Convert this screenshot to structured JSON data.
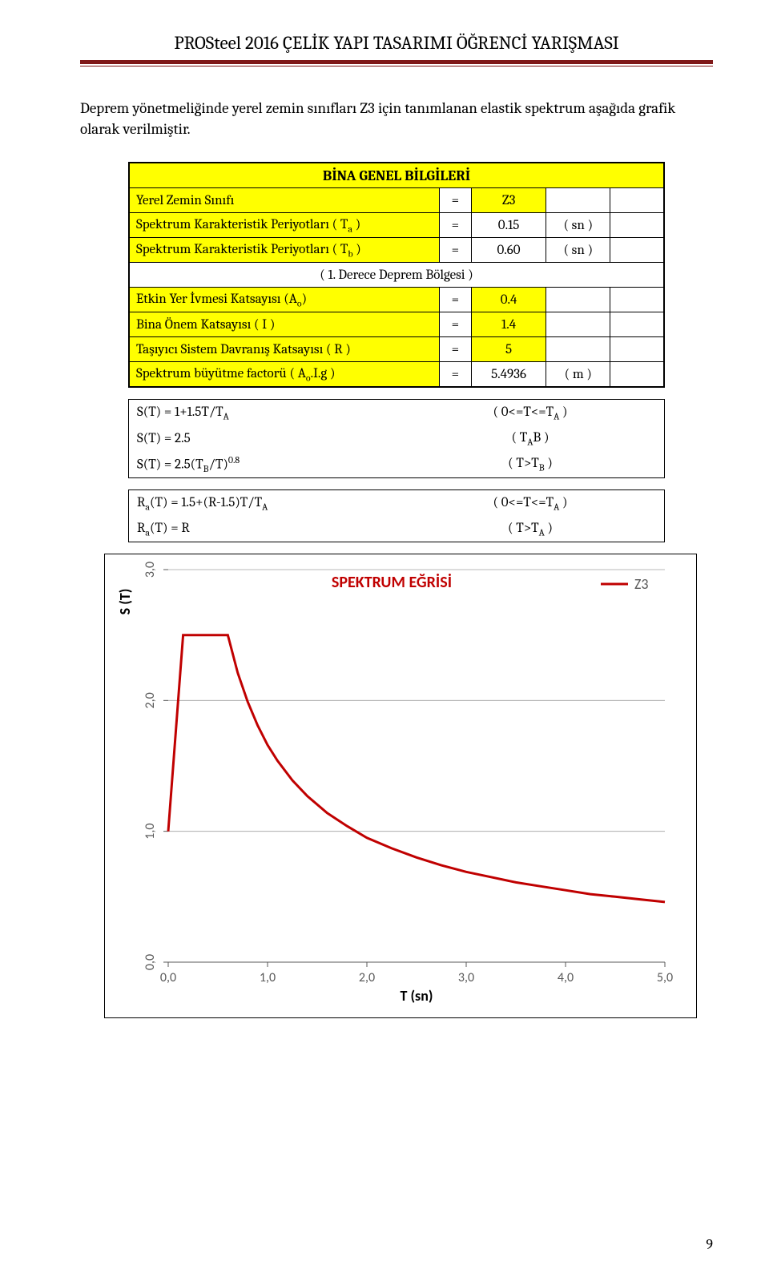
{
  "header": {
    "title": "PROSteel 2016 ÇELİK YAPI TASARIMI ÖĞRENCİ YARIŞMASI"
  },
  "intro": "Deprem yönetmeliğinde yerel zemin sınıfları Z3 için tanımlanan elastik spektrum aşağıda grafik olarak verilmiştir.",
  "table": {
    "title": "BİNA GENEL BİLGİLERİ",
    "rows": [
      {
        "label": "Yerel Zemin Sınıfı",
        "eq": "=",
        "val": "Z3",
        "unit": "",
        "yellow_cols": [
          "label",
          "val"
        ]
      },
      {
        "label_html": "Spektrum Karakteristik Periyotları ( T<sub>a</sub> )",
        "eq": "=",
        "val": "0.15",
        "unit": "( sn )",
        "yellow_cols": [
          "label"
        ]
      },
      {
        "label_html": "Spektrum Karakteristik Periyotları ( T<sub>b</sub> )",
        "eq": "=",
        "val": "0.60",
        "unit": "( sn )",
        "yellow_cols": [
          "label"
        ]
      },
      {
        "label": "( 1. Derece Deprem Bölgesi )",
        "center": true
      },
      {
        "label_html": "Etkin Yer İvmesi Katsayısı (A<sub>o</sub>)",
        "eq": "=",
        "val": "0.4",
        "unit": "",
        "yellow_cols": [
          "label",
          "val"
        ]
      },
      {
        "label": "Bina Önem Katsayısı ( I )",
        "eq": "=",
        "val": "1.4",
        "unit": "",
        "yellow_cols": [
          "label",
          "val"
        ]
      },
      {
        "label": "Taşıyıcı Sistem Davranış Katsayısı ( R )",
        "eq": "=",
        "val": "5",
        "unit": "",
        "yellow_cols": [
          "label",
          "val"
        ]
      },
      {
        "label_html": "Spektrum büyütme factorü ( A<sub>o</sub>.I.g )",
        "eq": "=",
        "val": "5.4936",
        "unit": "( m )",
        "yellow_cols": [
          "label"
        ]
      }
    ]
  },
  "formulas1": [
    {
      "left_html": "S(T) = 1+1.5T/T<sub>A</sub>",
      "right_html": "( 0<=T<=T<sub>A</sub> )"
    },
    {
      "left_html": "S(T) = 2.5",
      "right_html": "( T<sub>A</sub><T<=T<sub>B</sub> )"
    },
    {
      "left_html": "S(T) = 2.5(T<sub>B</sub>/T)<sup>0.8</sup>",
      "right_html": "(        T>T<sub>B</sub> )"
    }
  ],
  "formulas2": [
    {
      "left_html": "R<sub>a</sub>(T) = 1.5+(R-1.5)T/T<sub>A</sub>",
      "right_html": "( 0<=T<=T<sub>A</sub> )"
    },
    {
      "left_html": "R<sub>a</sub>(T) = R",
      "right_html": "(        T>T<sub>A</sub> )"
    }
  ],
  "chart": {
    "title": "SPEKTRUM EĞRİSİ",
    "title_color": "#c00000",
    "legend_label": "Z3",
    "legend_color": "#c00000",
    "y_label": "S (T)",
    "x_label": "T (sn)",
    "y_ticks": [
      "0,0",
      "1,0",
      "2,0",
      "3,0"
    ],
    "x_ticks": [
      "0,0",
      "1,0",
      "2,0",
      "3,0",
      "4,0",
      "5,0"
    ],
    "ylim": [
      0,
      3
    ],
    "xlim": [
      0,
      5
    ],
    "grid_color": "#a0a0a0",
    "tick_color": "#595959",
    "border_color": "#000000",
    "background_color": "#ffffff",
    "line_color": "#c00000",
    "line_width": 3,
    "font_size_title": 20,
    "font_size_ticks": 16,
    "curve_points": [
      [
        0.0,
        1.0
      ],
      [
        0.15,
        2.5
      ],
      [
        0.6,
        2.5
      ],
      [
        0.7,
        2.21
      ],
      [
        0.8,
        1.99
      ],
      [
        0.9,
        1.81
      ],
      [
        1.0,
        1.66
      ],
      [
        1.1,
        1.54
      ],
      [
        1.25,
        1.39
      ],
      [
        1.4,
        1.27
      ],
      [
        1.6,
        1.14
      ],
      [
        1.8,
        1.04
      ],
      [
        2.0,
        0.95
      ],
      [
        2.25,
        0.87
      ],
      [
        2.5,
        0.8
      ],
      [
        2.75,
        0.74
      ],
      [
        3.0,
        0.69
      ],
      [
        3.25,
        0.65
      ],
      [
        3.5,
        0.61
      ],
      [
        3.75,
        0.58
      ],
      [
        4.0,
        0.55
      ],
      [
        4.25,
        0.52
      ],
      [
        4.5,
        0.5
      ],
      [
        4.75,
        0.48
      ],
      [
        5.0,
        0.46
      ]
    ]
  },
  "page_number": "9"
}
